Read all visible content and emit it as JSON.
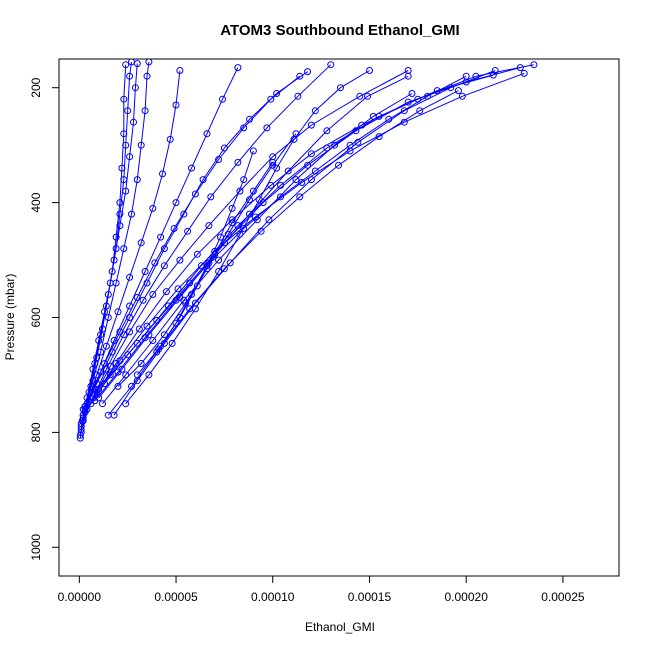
{
  "chart_data": {
    "type": "line",
    "title": "ATOM3 Southbound Ethanol_GMI",
    "xlabel": "Ethanol_GMI",
    "ylabel": "Pressure (mbar)",
    "x_ticks": [
      "0.00000",
      "0.00005",
      "0.00010",
      "0.00015",
      "0.00020",
      "0.00025"
    ],
    "x_tick_values": [
      0,
      5e-05,
      0.0001,
      0.00015,
      0.0002,
      0.00025
    ],
    "y_ticks": [
      "200",
      "400",
      "600",
      "800",
      "1000"
    ],
    "y_tick_values": [
      200,
      400,
      600,
      800,
      1000
    ],
    "xlim": [
      -1.05e-05,
      0.000279
    ],
    "ylim": [
      1050,
      150
    ],
    "y_reversed": true,
    "grid": false,
    "legend": "none",
    "marker": "open-circle",
    "color": "#0000ff",
    "series": [
      {
        "points": [
          [
            5e-07,
            810
          ],
          [
            1.5e-06,
            780
          ],
          [
            4e-06,
            740
          ],
          [
            7e-06,
            690
          ],
          [
            1e-05,
            640
          ],
          [
            1.3e-05,
            590
          ],
          [
            1.6e-05,
            540
          ],
          [
            1.9e-05,
            480
          ],
          [
            2.1e-05,
            420
          ],
          [
            2.3e-05,
            360
          ],
          [
            2.4e-05,
            300
          ],
          [
            2.5e-05,
            240
          ],
          [
            2.6e-05,
            180
          ],
          [
            2.7e-05,
            155
          ]
        ]
      },
      {
        "points": [
          [
            5e-07,
            805
          ],
          [
            2e-06,
            770
          ],
          [
            5e-06,
            730
          ],
          [
            8e-06,
            680
          ],
          [
            1.1e-05,
            630
          ],
          [
            1.4e-05,
            580
          ],
          [
            1.7e-05,
            520
          ],
          [
            1.9e-05,
            460
          ],
          [
            2.1e-05,
            400
          ],
          [
            2.2e-05,
            340
          ],
          [
            2.3e-05,
            280
          ],
          [
            2.3e-05,
            220
          ],
          [
            2.4e-05,
            160
          ]
        ]
      },
      {
        "points": [
          [
            1e-06,
            800
          ],
          [
            3e-06,
            760
          ],
          [
            6e-06,
            720
          ],
          [
            9e-06,
            670
          ],
          [
            1.2e-05,
            620
          ],
          [
            1.5e-05,
            560
          ],
          [
            1.8e-05,
            500
          ],
          [
            2.1e-05,
            440
          ],
          [
            2.4e-05,
            380
          ],
          [
            2.6e-05,
            320
          ],
          [
            2.8e-05,
            260
          ],
          [
            2.9e-05,
            200
          ],
          [
            3e-05,
            158
          ]
        ]
      },
      {
        "points": [
          [
            1e-06,
            795
          ],
          [
            3e-06,
            755
          ],
          [
            7e-06,
            710
          ],
          [
            1.1e-05,
            660
          ],
          [
            1.5e-05,
            600
          ],
          [
            1.9e-05,
            540
          ],
          [
            2.3e-05,
            480
          ],
          [
            2.7e-05,
            420
          ],
          [
            3e-05,
            360
          ],
          [
            3.2e-05,
            300
          ],
          [
            3.4e-05,
            240
          ],
          [
            3.5e-05,
            180
          ],
          [
            3.6e-05,
            155
          ]
        ]
      },
      {
        "points": [
          [
            1e-06,
            790
          ],
          [
            4e-06,
            750
          ],
          [
            9e-06,
            700
          ],
          [
            1.4e-05,
            650
          ],
          [
            2e-05,
            590
          ],
          [
            2.6e-05,
            530
          ],
          [
            3.2e-05,
            470
          ],
          [
            3.8e-05,
            410
          ],
          [
            4.3e-05,
            350
          ],
          [
            4.7e-05,
            290
          ],
          [
            5e-05,
            230
          ],
          [
            5.2e-05,
            170
          ]
        ]
      },
      {
        "points": [
          [
            1e-06,
            785
          ],
          [
            5e-06,
            745
          ],
          [
            1.1e-05,
            695
          ],
          [
            1.8e-05,
            640
          ],
          [
            2.6e-05,
            580
          ],
          [
            3.4e-05,
            520
          ],
          [
            4.2e-05,
            460
          ],
          [
            5e-05,
            400
          ],
          [
            5.8e-05,
            340
          ],
          [
            6.6e-05,
            280
          ],
          [
            7.4e-05,
            220
          ],
          [
            8.2e-05,
            165
          ]
        ]
      },
      {
        "points": [
          [
            2e-06,
            780
          ],
          [
            7e-06,
            740
          ],
          [
            1.4e-05,
            690
          ],
          [
            2.3e-05,
            630
          ],
          [
            3.3e-05,
            570
          ],
          [
            4.4e-05,
            510
          ],
          [
            5.6e-05,
            450
          ],
          [
            6.8e-05,
            390
          ],
          [
            8.2e-05,
            330
          ],
          [
            9.7e-05,
            270
          ],
          [
            0.000113,
            215
          ],
          [
            0.00013,
            160
          ]
        ]
      },
      {
        "points": [
          [
            2e-06,
            775
          ],
          [
            8e-06,
            735
          ],
          [
            1.6e-05,
            685
          ],
          [
            2.6e-05,
            625
          ],
          [
            3.8e-05,
            560
          ],
          [
            5.2e-05,
            500
          ],
          [
            6.7e-05,
            440
          ],
          [
            8.3e-05,
            380
          ],
          [
            0.0001,
            320
          ],
          [
            0.00012,
            265
          ],
          [
            0.000145,
            215
          ],
          [
            0.00017,
            170
          ]
        ]
      },
      {
        "points": [
          [
            2e-06,
            770
          ],
          [
            9e-06,
            730
          ],
          [
            1.9e-05,
            680
          ],
          [
            3.1e-05,
            620
          ],
          [
            4.5e-05,
            555
          ],
          [
            6.1e-05,
            490
          ],
          [
            7.9e-05,
            430
          ],
          [
            9.9e-05,
            370
          ],
          [
            0.00012,
            315
          ],
          [
            0.000146,
            265
          ],
          [
            0.000175,
            220
          ],
          [
            0.000205,
            180
          ],
          [
            0.000235,
            160
          ]
        ]
      },
      {
        "points": [
          [
            3e-06,
            765
          ],
          [
            1e-05,
            725
          ],
          [
            2.1e-05,
            675
          ],
          [
            3.5e-05,
            615
          ],
          [
            5.1e-05,
            550
          ],
          [
            7e-05,
            485
          ],
          [
            9.1e-05,
            425
          ],
          [
            0.000115,
            365
          ],
          [
            0.00014,
            310
          ],
          [
            0.000168,
            260
          ],
          [
            0.000198,
            215
          ],
          [
            0.00023,
            175
          ]
        ]
      },
      {
        "points": [
          [
            4e-06,
            760
          ],
          [
            1.3e-05,
            715
          ],
          [
            2.5e-05,
            665
          ],
          [
            4e-05,
            605
          ],
          [
            5.7e-05,
            540
          ],
          [
            7.5e-05,
            470
          ],
          [
            9.5e-05,
            400
          ],
          [
            0.000118,
            335
          ],
          [
            0.000143,
            275
          ],
          [
            0.00017,
            225
          ],
          [
            0.0002,
            190
          ],
          [
            0.000228,
            165
          ]
        ]
      },
      {
        "points": [
          [
            6e-06,
            750
          ],
          [
            1.6e-05,
            700
          ],
          [
            3e-05,
            645
          ],
          [
            4.6e-05,
            580
          ],
          [
            6.3e-05,
            510
          ],
          [
            8.2e-05,
            440
          ],
          [
            0.000104,
            370
          ],
          [
            0.000128,
            305
          ],
          [
            0.000155,
            250
          ],
          [
            0.000185,
            205
          ],
          [
            0.000214,
            178
          ]
        ]
      },
      {
        "points": [
          [
            8e-06,
            745
          ],
          [
            2e-05,
            695
          ],
          [
            3.4e-05,
            635
          ],
          [
            5e-05,
            570
          ],
          [
            6.7e-05,
            505
          ],
          [
            8.5e-05,
            445
          ],
          [
            0.000104,
            390
          ],
          [
            0.000122,
            345
          ],
          [
            0.00014,
            300
          ],
          [
            0.00016,
            255
          ],
          [
            0.00018,
            215
          ],
          [
            0.0002,
            180
          ]
        ]
      },
      {
        "points": [
          [
            1e-05,
            740
          ],
          [
            2.2e-05,
            690
          ],
          [
            3.6e-05,
            630
          ],
          [
            5.2e-05,
            565
          ],
          [
            6.9e-05,
            495
          ],
          [
            8.8e-05,
            420
          ],
          [
            0.000108,
            345
          ],
          [
            0.000128,
            275
          ],
          [
            0.000149,
            215
          ],
          [
            0.00017,
            180
          ]
        ]
      },
      {
        "points": [
          [
            1.2e-05,
            750
          ],
          [
            2.4e-05,
            700
          ],
          [
            3.8e-05,
            640
          ],
          [
            5.4e-05,
            570
          ],
          [
            7.2e-05,
            500
          ],
          [
            9.2e-05,
            430
          ],
          [
            0.000112,
            360
          ],
          [
            0.000132,
            300
          ],
          [
            0.000152,
            250
          ],
          [
            0.000172,
            210
          ]
        ]
      },
      {
        "points": [
          [
            1.5e-05,
            770
          ],
          [
            2.7e-05,
            720
          ],
          [
            4.1e-05,
            655
          ],
          [
            5.7e-05,
            585
          ],
          [
            7.5e-05,
            515
          ],
          [
            9.4e-05,
            450
          ],
          [
            0.000114,
            390
          ],
          [
            0.000134,
            335
          ],
          [
            0.000155,
            285
          ],
          [
            0.000176,
            240
          ],
          [
            0.000196,
            205
          ]
        ]
      },
      {
        "points": [
          [
            1.8e-05,
            770
          ],
          [
            3e-05,
            710
          ],
          [
            4.4e-05,
            645
          ],
          [
            6e-05,
            575
          ],
          [
            7.8e-05,
            505
          ],
          [
            9.8e-05,
            430
          ],
          [
            0.00012,
            360
          ],
          [
            0.000144,
            295
          ],
          [
            0.000168,
            240
          ],
          [
            0.000192,
            200
          ],
          [
            0.000215,
            170
          ]
        ]
      },
      {
        "points": [
          [
            2.4e-05,
            750
          ],
          [
            3.6e-05,
            700
          ],
          [
            4.8e-05,
            645
          ],
          [
            6e-05,
            585
          ],
          [
            7.2e-05,
            520
          ],
          [
            8.3e-05,
            455
          ],
          [
            9.3e-05,
            395
          ],
          [
            0.000102,
            340
          ],
          [
            0.000111,
            290
          ],
          [
            0.000122,
            240
          ],
          [
            0.000135,
            200
          ],
          [
            0.00015,
            170
          ]
        ]
      },
      {
        "points": [
          [
            3e-06,
            755
          ],
          [
            9e-06,
            715
          ],
          [
            1.7e-05,
            660
          ],
          [
            2.6e-05,
            600
          ],
          [
            3.5e-05,
            540
          ],
          [
            4.4e-05,
            480
          ],
          [
            5.4e-05,
            420
          ],
          [
            6.4e-05,
            360
          ],
          [
            7.5e-05,
            305
          ],
          [
            8.8e-05,
            255
          ],
          [
            0.000102,
            210
          ],
          [
            0.000118,
            172
          ]
        ]
      },
      {
        "points": [
          [
            2e-06,
            760
          ],
          [
            7e-06,
            725
          ],
          [
            1.3e-05,
            680
          ],
          [
            2.1e-05,
            625
          ],
          [
            3e-05,
            565
          ],
          [
            3.9e-05,
            505
          ],
          [
            4.9e-05,
            445
          ],
          [
            6e-05,
            385
          ],
          [
            7.2e-05,
            325
          ],
          [
            8.5e-05,
            270
          ],
          [
            9.9e-05,
            220
          ],
          [
            0.000114,
            180
          ]
        ]
      },
      {
        "points": [
          [
            4e-05,
            660
          ],
          [
            5e-05,
            610
          ],
          [
            5.8e-05,
            560
          ],
          [
            6.6e-05,
            510
          ],
          [
            7.3e-05,
            460
          ],
          [
            7.9e-05,
            410
          ],
          [
            8.5e-05,
            360
          ],
          [
            9e-05,
            310
          ]
        ]
      },
      {
        "points": [
          [
            3e-05,
            700
          ],
          [
            4.2e-05,
            650
          ],
          [
            5.2e-05,
            600
          ],
          [
            6.1e-05,
            545
          ],
          [
            7e-05,
            490
          ],
          [
            7.9e-05,
            435
          ],
          [
            9e-05,
            380
          ],
          [
            0.0001,
            330
          ]
        ]
      },
      {
        "points": [
          [
            2e-05,
            720
          ],
          [
            3.2e-05,
            680
          ],
          [
            4.4e-05,
            630
          ],
          [
            5.5e-05,
            575
          ],
          [
            6.6e-05,
            515
          ],
          [
            7.7e-05,
            455
          ],
          [
            8.8e-05,
            395
          ],
          [
            0.0001,
            335
          ],
          [
            0.000112,
            280
          ]
        ]
      }
    ]
  }
}
